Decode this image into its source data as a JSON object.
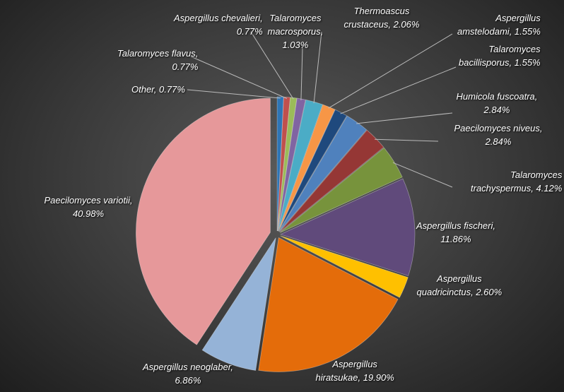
{
  "chart_data": {
    "type": "pie",
    "values": [
      0.77,
      0.77,
      0.77,
      1.03,
      2.06,
      1.55,
      1.55,
      2.84,
      2.84,
      4.12,
      11.86,
      2.6,
      19.9,
      6.86,
      40.98
    ],
    "value_labels": [
      "Other, 0.77%",
      "Talaromyces flavus,\n0.77%",
      "Aspergillus chevalieri,\n0.77%",
      "Talaromyces\nmacrosporus,\n1.03%",
      "Thermoascus\ncrustaceus, 2.06%",
      "Aspergillus\namstelodami, 1.55%",
      "Talaromyces\nbacillisporus, 1.55%",
      "Humicola fuscoatra,\n2.84%",
      "Paecilomyces niveus,\n2.84%",
      "Talaromyces\ntrachyspermus, 4.12%",
      "Aspergillus fischeri,\n11.86%",
      "Aspergillus\nquadricinctus, 2.60%",
      "Aspergillus\nhiratsukae, 19.90%",
      "Aspergillus neoglaber,\n6.86%",
      "Paecilomyces variotii,\n40.98%"
    ],
    "colors": [
      "#2e75b6",
      "#c0504d",
      "#9bbb59",
      "#8064a2",
      "#4bacc6",
      "#f79646",
      "#1f497d",
      "#4f81bd",
      "#953735",
      "#77933c",
      "#604a7b",
      "#ffc000",
      "#e46c0a",
      "#95b3d7",
      "#e6989a",
      "#00b050"
    ]
  }
}
